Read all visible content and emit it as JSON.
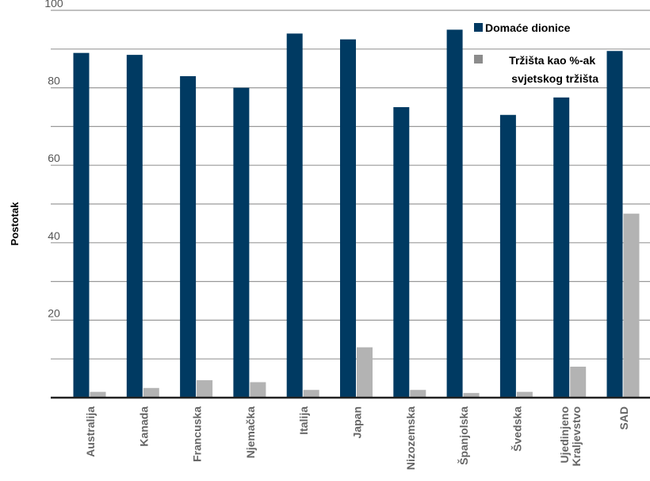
{
  "chart_data": {
    "type": "bar",
    "title": "",
    "xlabel": "",
    "ylabel": "Postotak",
    "ylim": [
      0,
      100
    ],
    "yticks": [
      20,
      40,
      60,
      80,
      100
    ],
    "grid": true,
    "legend_position": "top-right",
    "categories": [
      "Australija",
      "Kanada",
      "Francuska",
      "Njemačka",
      "Italija",
      "Japan",
      "Nizozemska",
      "Španjolska",
      "Švedska",
      "Ujedinjeno Kraljevstvo",
      "SAD"
    ],
    "category_lines": [
      [
        "Australija"
      ],
      [
        "Kanada"
      ],
      [
        "Francuska"
      ],
      [
        "Njemačka"
      ],
      [
        "Italija"
      ],
      [
        "Japan"
      ],
      [
        "Nizozemska"
      ],
      [
        "Španjolska"
      ],
      [
        "Švedska"
      ],
      [
        "Ujedinjeno",
        "Kraljevstvo"
      ],
      [
        "SAD"
      ]
    ],
    "series": [
      {
        "name": "Domaće dionice",
        "color": "#003a62",
        "values": [
          89,
          88.5,
          83,
          80,
          94,
          92.5,
          75,
          95,
          73,
          77.5,
          89.5
        ]
      },
      {
        "name": "Tržišta kao %-ak svjetskog tržišta",
        "name_lines": [
          "Tržišta kao %-ak",
          "svjetskog tržišta"
        ],
        "color": "#b3b3b3",
        "values": [
          1.5,
          2.5,
          4.5,
          4,
          2,
          13,
          2,
          1.2,
          1.5,
          8,
          47.5
        ]
      }
    ]
  }
}
